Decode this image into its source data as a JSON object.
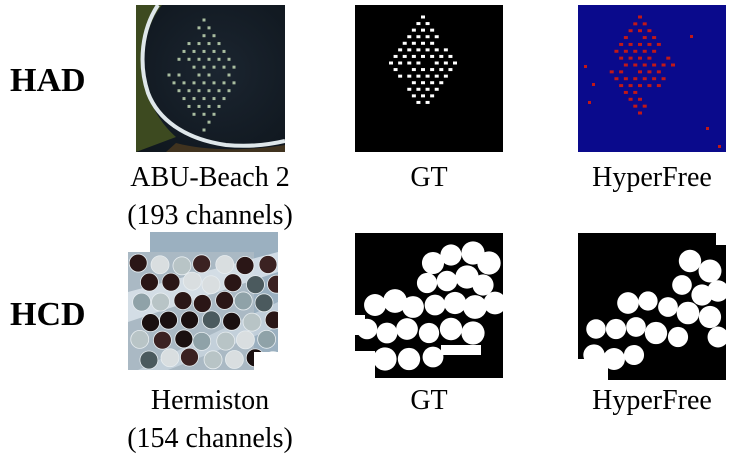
{
  "rows": [
    {
      "label": "HAD",
      "input_caption": [
        "ABU-Beach 2",
        "(193 channels)"
      ],
      "gt_caption": "GT",
      "result_caption": "HyperFree"
    },
    {
      "label": "HCD",
      "input_caption": [
        "Hermiston",
        "(154 channels)"
      ],
      "gt_caption": "GT",
      "result_caption": "HyperFree"
    }
  ],
  "colors": {
    "anomaly_background": "#0a0a8c",
    "anomaly_detection": "#c01818",
    "mask_foreground": "#ffffff",
    "mask_background": "#000000"
  }
}
